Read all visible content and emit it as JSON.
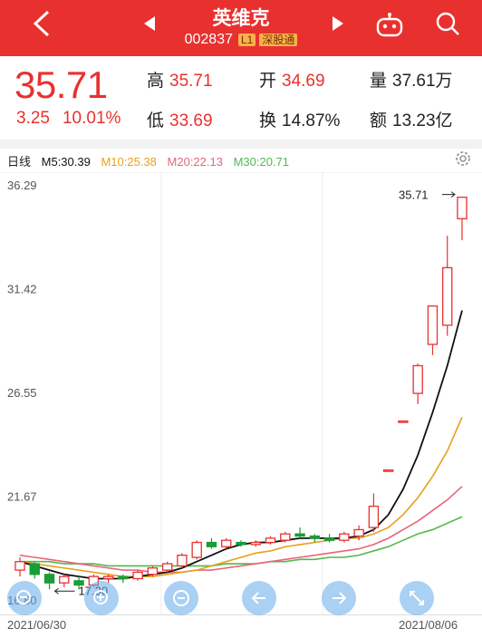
{
  "header": {
    "stock_name": "英维克",
    "code": "002837",
    "tag_level": "L1",
    "tag_connect": "深股通",
    "icons": [
      "back-arrow-icon",
      "prev-stock-icon",
      "next-stock-icon",
      "robot-assistant-icon",
      "search-icon"
    ],
    "bg_color": "#e8312f"
  },
  "quote": {
    "price": "35.71",
    "change": "3.25",
    "change_pct": "10.01%",
    "high_label": "高",
    "high": "35.71",
    "open_label": "开",
    "open": "34.69",
    "volume_label": "量",
    "volume": "37.61万",
    "low_label": "低",
    "low": "33.69",
    "turnover_label": "换",
    "turnover": "14.87%",
    "amount_label": "额",
    "amount": "13.23亿",
    "up_color": "#e8312f",
    "down_color": "#1a9c39"
  },
  "chart_head": {
    "period": "日线",
    "m5": "M5:30.39",
    "m10": "M10:25.38",
    "m20": "M20:22.13",
    "m30": "M30:20.71",
    "colors": {
      "m5": "#111111",
      "m10": "#e6a11d",
      "m20": "#e8657a",
      "m30": "#52b94b"
    }
  },
  "chart_data": {
    "type": "candlestick",
    "y_ticks": [
      "36.29",
      "31.42",
      "26.55",
      "21.67",
      "16.80"
    ],
    "ylim": [
      16.8,
      36.29
    ],
    "x_start": "2021/06/30",
    "x_end": "2021/08/06",
    "max_label": "35.71",
    "min_label": "17.30",
    "candles": [
      {
        "o": 18.2,
        "c": 18.6,
        "h": 18.8,
        "l": 17.9
      },
      {
        "o": 18.5,
        "c": 18.0,
        "h": 18.6,
        "l": 17.8
      },
      {
        "o": 18.0,
        "c": 17.6,
        "h": 18.1,
        "l": 17.3
      },
      {
        "o": 17.6,
        "c": 17.9,
        "h": 18.0,
        "l": 17.4
      },
      {
        "o": 17.7,
        "c": 17.5,
        "h": 17.9,
        "l": 17.3
      },
      {
        "o": 17.5,
        "c": 17.9,
        "h": 18.0,
        "l": 17.4
      },
      {
        "o": 17.8,
        "c": 17.9,
        "h": 18.0,
        "l": 17.6
      },
      {
        "o": 17.9,
        "c": 17.8,
        "h": 18.0,
        "l": 17.6
      },
      {
        "o": 17.8,
        "c": 18.1,
        "h": 18.2,
        "l": 17.7
      },
      {
        "o": 18.0,
        "c": 18.3,
        "h": 18.4,
        "l": 17.9
      },
      {
        "o": 18.2,
        "c": 18.5,
        "h": 18.6,
        "l": 18.1
      },
      {
        "o": 18.4,
        "c": 18.9,
        "h": 19.0,
        "l": 18.3
      },
      {
        "o": 18.8,
        "c": 19.5,
        "h": 19.6,
        "l": 18.7
      },
      {
        "o": 19.5,
        "c": 19.3,
        "h": 19.7,
        "l": 19.2
      },
      {
        "o": 19.3,
        "c": 19.6,
        "h": 19.7,
        "l": 19.2
      },
      {
        "o": 19.5,
        "c": 19.4,
        "h": 19.6,
        "l": 19.3
      },
      {
        "o": 19.4,
        "c": 19.5,
        "h": 19.6,
        "l": 19.3
      },
      {
        "o": 19.5,
        "c": 19.7,
        "h": 19.8,
        "l": 19.4
      },
      {
        "o": 19.6,
        "c": 19.9,
        "h": 20.0,
        "l": 19.5
      },
      {
        "o": 19.9,
        "c": 19.8,
        "h": 20.2,
        "l": 19.7
      },
      {
        "o": 19.8,
        "c": 19.7,
        "h": 19.9,
        "l": 19.5
      },
      {
        "o": 19.7,
        "c": 19.6,
        "h": 19.9,
        "l": 19.5
      },
      {
        "o": 19.6,
        "c": 19.9,
        "h": 20.0,
        "l": 19.5
      },
      {
        "o": 19.8,
        "c": 20.1,
        "h": 20.3,
        "l": 19.6
      },
      {
        "o": 20.2,
        "c": 21.2,
        "h": 21.8,
        "l": 20.0
      },
      {
        "o": 22.9,
        "c": 22.9,
        "h": 22.9,
        "l": 22.9
      },
      {
        "o": 25.2,
        "c": 25.2,
        "h": 25.2,
        "l": 25.2
      },
      {
        "o": 26.5,
        "c": 27.8,
        "h": 27.9,
        "l": 26.0
      },
      {
        "o": 28.8,
        "c": 30.6,
        "h": 30.6,
        "l": 28.3
      },
      {
        "o": 29.7,
        "c": 32.4,
        "h": 33.9,
        "l": 29.2
      },
      {
        "o": 34.7,
        "c": 35.71,
        "h": 35.71,
        "l": 33.69
      }
    ],
    "ma5": [
      18.6,
      18.4,
      18.2,
      18.0,
      17.9,
      17.8,
      17.8,
      17.8,
      17.9,
      18.0,
      18.1,
      18.3,
      18.6,
      18.9,
      19.2,
      19.4,
      19.5,
      19.5,
      19.6,
      19.7,
      19.7,
      19.7,
      19.7,
      19.8,
      20.1,
      20.8,
      22.0,
      23.6,
      25.6,
      27.8,
      30.39
    ],
    "ma10": [
      18.6,
      18.5,
      18.4,
      18.3,
      18.2,
      18.1,
      18.0,
      17.9,
      17.9,
      17.9,
      18.0,
      18.1,
      18.2,
      18.4,
      18.6,
      18.8,
      19.0,
      19.1,
      19.3,
      19.4,
      19.5,
      19.6,
      19.7,
      19.7,
      19.9,
      20.2,
      20.8,
      21.6,
      22.6,
      23.8,
      25.38
    ],
    "ma20": [
      18.9,
      18.8,
      18.7,
      18.6,
      18.5,
      18.4,
      18.3,
      18.2,
      18.2,
      18.1,
      18.1,
      18.1,
      18.2,
      18.2,
      18.3,
      18.4,
      18.5,
      18.6,
      18.7,
      18.8,
      18.9,
      19.0,
      19.1,
      19.2,
      19.4,
      19.7,
      20.1,
      20.5,
      21.0,
      21.5,
      22.13
    ],
    "ma30": [
      18.6,
      18.6,
      18.6,
      18.5,
      18.5,
      18.5,
      18.4,
      18.4,
      18.4,
      18.4,
      18.4,
      18.4,
      18.4,
      18.4,
      18.5,
      18.5,
      18.5,
      18.6,
      18.6,
      18.7,
      18.7,
      18.8,
      18.8,
      18.9,
      19.1,
      19.3,
      19.6,
      19.9,
      20.1,
      20.4,
      20.71
    ]
  },
  "controls": [
    "zoom-out-icon",
    "zoom-in-icon",
    "zoom-reset-icon",
    "scroll-left-icon",
    "scroll-right-icon",
    "fullscreen-icon"
  ]
}
